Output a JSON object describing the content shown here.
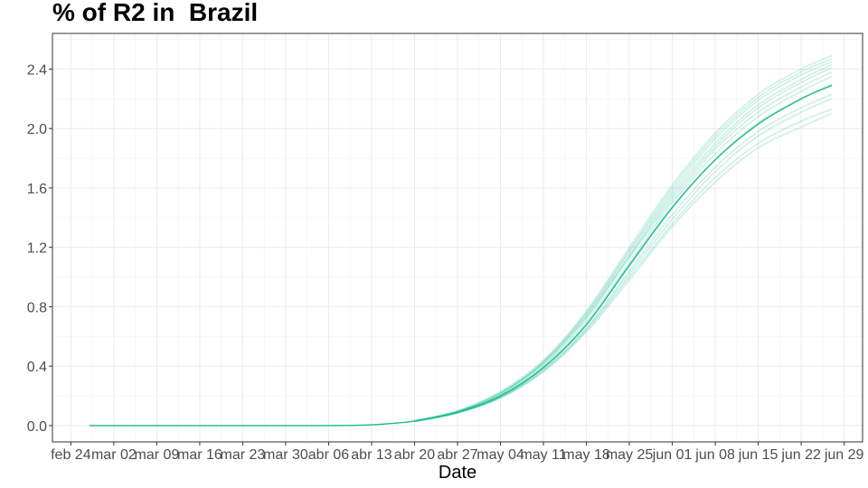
{
  "chart_data": {
    "type": "line",
    "title": "% of R2 in  Brazil",
    "xlabel": "Date",
    "ylabel": "",
    "ylim": [
      -0.11,
      2.64
    ],
    "xlim": [
      "2020-02-21",
      "2020-07-02"
    ],
    "yticks": [
      0.0,
      0.4,
      0.8,
      1.2,
      1.6,
      2.0,
      2.4
    ],
    "ytick_labels": [
      "0.0",
      "0.4",
      "0.8",
      "1.2",
      "1.6",
      "2.0",
      "2.4"
    ],
    "xticks": [
      "2020-02-24",
      "2020-03-02",
      "2020-03-09",
      "2020-03-16",
      "2020-03-23",
      "2020-03-30",
      "2020-04-06",
      "2020-04-13",
      "2020-04-20",
      "2020-04-27",
      "2020-05-04",
      "2020-05-11",
      "2020-05-18",
      "2020-05-25",
      "2020-06-01",
      "2020-06-08",
      "2020-06-15",
      "2020-06-22",
      "2020-06-29"
    ],
    "xtick_labels": [
      "feb 24",
      "mar 02",
      "mar 09",
      "mar 16",
      "mar 23",
      "mar 30",
      "abr 06",
      "abr 13",
      "abr 20",
      "abr 27",
      "may 04",
      "may 11",
      "may 18",
      "may 25",
      "jun 01",
      "jun 08",
      "jun 15",
      "jun 22",
      "jun 29"
    ],
    "grid": true,
    "line_color": "#1abc8c",
    "series": [
      {
        "role": "central",
        "x": [
          "2020-02-27",
          "2020-03-09",
          "2020-03-23",
          "2020-04-06",
          "2020-04-13",
          "2020-04-20",
          "2020-04-27",
          "2020-05-04",
          "2020-05-11",
          "2020-05-18",
          "2020-05-25",
          "2020-06-01",
          "2020-06-08",
          "2020-06-15",
          "2020-06-22",
          "2020-06-27"
        ],
        "values": [
          0.0,
          0.0,
          0.0,
          0.0,
          0.005,
          0.03,
          0.09,
          0.2,
          0.39,
          0.68,
          1.08,
          1.47,
          1.79,
          2.03,
          2.2,
          2.29
        ]
      },
      {
        "role": "sample",
        "x": [
          "2020-04-20",
          "2020-04-27",
          "2020-05-04",
          "2020-05-11",
          "2020-05-18",
          "2020-05-25",
          "2020-06-01",
          "2020-06-08",
          "2020-06-15",
          "2020-06-22",
          "2020-06-27"
        ],
        "values": [
          0.03,
          0.095,
          0.22,
          0.43,
          0.75,
          1.17,
          1.58,
          1.93,
          2.19,
          2.36,
          2.45
        ]
      },
      {
        "role": "sample",
        "x": [
          "2020-04-20",
          "2020-04-27",
          "2020-05-04",
          "2020-05-11",
          "2020-05-18",
          "2020-05-25",
          "2020-06-01",
          "2020-06-08",
          "2020-06-15",
          "2020-06-22",
          "2020-06-27"
        ],
        "values": [
          0.032,
          0.1,
          0.23,
          0.44,
          0.77,
          1.2,
          1.62,
          1.97,
          2.23,
          2.4,
          2.49
        ]
      },
      {
        "role": "sample",
        "x": [
          "2020-04-20",
          "2020-04-27",
          "2020-05-04",
          "2020-05-11",
          "2020-05-18",
          "2020-05-25",
          "2020-06-01",
          "2020-06-08",
          "2020-06-15",
          "2020-06-22",
          "2020-06-27"
        ],
        "values": [
          0.03,
          0.093,
          0.21,
          0.42,
          0.73,
          1.14,
          1.54,
          1.88,
          2.14,
          2.31,
          2.41
        ]
      },
      {
        "role": "sample",
        "x": [
          "2020-04-20",
          "2020-04-27",
          "2020-05-04",
          "2020-05-11",
          "2020-05-18",
          "2020-05-25",
          "2020-06-01",
          "2020-06-08",
          "2020-06-15",
          "2020-06-22",
          "2020-06-27"
        ],
        "values": [
          0.031,
          0.095,
          0.22,
          0.42,
          0.74,
          1.15,
          1.56,
          1.9,
          2.16,
          2.33,
          2.43
        ]
      },
      {
        "role": "sample",
        "x": [
          "2020-04-20",
          "2020-04-27",
          "2020-05-04",
          "2020-05-11",
          "2020-05-18",
          "2020-05-25",
          "2020-06-01",
          "2020-06-08",
          "2020-06-15",
          "2020-06-22",
          "2020-06-27"
        ],
        "values": [
          0.03,
          0.092,
          0.21,
          0.41,
          0.72,
          1.13,
          1.52,
          1.86,
          2.11,
          2.28,
          2.38
        ]
      },
      {
        "role": "sample",
        "x": [
          "2020-04-20",
          "2020-04-27",
          "2020-05-04",
          "2020-05-11",
          "2020-05-18",
          "2020-05-25",
          "2020-06-01",
          "2020-06-08",
          "2020-06-15",
          "2020-06-22",
          "2020-06-27"
        ],
        "values": [
          0.03,
          0.09,
          0.2,
          0.4,
          0.7,
          1.1,
          1.5,
          1.83,
          2.08,
          2.25,
          2.35
        ]
      },
      {
        "role": "sample",
        "x": [
          "2020-04-20",
          "2020-04-27",
          "2020-05-04",
          "2020-05-11",
          "2020-05-18",
          "2020-05-25",
          "2020-06-01",
          "2020-06-08",
          "2020-06-15",
          "2020-06-22",
          "2020-06-27"
        ],
        "values": [
          0.029,
          0.088,
          0.195,
          0.39,
          0.68,
          1.07,
          1.46,
          1.79,
          2.04,
          2.2,
          2.3
        ]
      },
      {
        "role": "sample",
        "x": [
          "2020-04-20",
          "2020-04-27",
          "2020-05-04",
          "2020-05-11",
          "2020-05-18",
          "2020-05-25",
          "2020-06-01",
          "2020-06-08",
          "2020-06-15",
          "2020-06-22",
          "2020-06-27"
        ],
        "values": [
          0.028,
          0.085,
          0.19,
          0.37,
          0.65,
          1.02,
          1.39,
          1.71,
          1.95,
          2.11,
          2.2
        ]
      },
      {
        "role": "sample",
        "x": [
          "2020-04-20",
          "2020-04-27",
          "2020-05-04",
          "2020-05-11",
          "2020-05-18",
          "2020-05-25",
          "2020-06-01",
          "2020-06-08",
          "2020-06-15",
          "2020-06-22",
          "2020-06-27"
        ],
        "values": [
          0.028,
          0.086,
          0.19,
          0.37,
          0.64,
          1.0,
          1.36,
          1.67,
          1.9,
          2.05,
          2.13
        ]
      },
      {
        "role": "sample",
        "x": [
          "2020-04-20",
          "2020-04-27",
          "2020-05-04",
          "2020-05-11",
          "2020-05-18",
          "2020-05-25",
          "2020-06-01",
          "2020-06-08",
          "2020-06-15",
          "2020-06-22",
          "2020-06-27"
        ],
        "values": [
          0.027,
          0.084,
          0.185,
          0.36,
          0.63,
          0.98,
          1.34,
          1.64,
          1.87,
          2.01,
          2.1
        ]
      },
      {
        "role": "sample",
        "x": [
          "2020-04-20",
          "2020-04-27",
          "2020-05-04",
          "2020-05-11",
          "2020-05-18",
          "2020-05-25",
          "2020-06-01",
          "2020-06-08",
          "2020-06-15",
          "2020-06-22",
          "2020-06-27"
        ],
        "values": [
          0.029,
          0.087,
          0.19,
          0.38,
          0.66,
          1.04,
          1.42,
          1.74,
          1.98,
          2.14,
          2.23
        ]
      },
      {
        "role": "sample",
        "x": [
          "2020-04-20",
          "2020-04-27",
          "2020-05-04",
          "2020-05-11",
          "2020-05-18",
          "2020-05-25",
          "2020-06-01",
          "2020-06-08",
          "2020-06-15",
          "2020-06-22",
          "2020-06-27"
        ],
        "values": [
          0.031,
          0.097,
          0.22,
          0.43,
          0.76,
          1.18,
          1.6,
          1.95,
          2.21,
          2.38,
          2.47
        ]
      }
    ]
  }
}
